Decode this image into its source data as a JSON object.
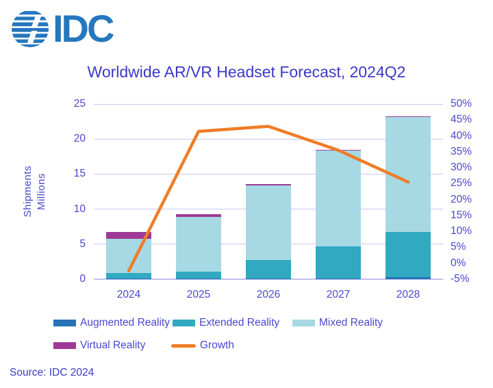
{
  "logo": {
    "text": "IDC",
    "color": "#2577BE"
  },
  "title": {
    "text": "Worldwide AR/VR Headset Forecast, 2024Q2"
  },
  "y_axis_label": {
    "line1": "Shipments",
    "line2": "Millions"
  },
  "source": {
    "text": "Source: IDC 2024"
  },
  "chart_data": {
    "type": "bar",
    "subtype": "stacked-bars-with-growth-line",
    "title": "Worldwide AR/VR Headset Forecast, 2024Q2",
    "categories": [
      "2024",
      "2025",
      "2026",
      "2027",
      "2028"
    ],
    "series": [
      {
        "name": "Augmented Reality",
        "color": "#2673B8",
        "values": [
          0.1,
          0.1,
          0.1,
          0.1,
          0.3
        ]
      },
      {
        "name": "Extended Reality",
        "color": "#31A9C1",
        "values": [
          0.8,
          1.0,
          2.6,
          4.6,
          6.4
        ]
      },
      {
        "name": "Mixed Reality",
        "color": "#A6D9E4",
        "values": [
          4.9,
          7.8,
          10.7,
          13.7,
          16.4
        ]
      },
      {
        "name": "Virtual Reality",
        "color": "#9E3A95",
        "values": [
          0.9,
          0.4,
          0.15,
          0.1,
          0.1
        ]
      }
    ],
    "totals": [
      6.7,
      9.3,
      13.55,
      18.5,
      23.2
    ],
    "line_series": {
      "name": "Growth",
      "color": "#EF7D27",
      "values": [
        -2.4,
        41.4,
        43.0,
        35.5,
        25.5
      ],
      "unit": "%"
    },
    "ylabel_left": "Shipments Millions",
    "y_left": {
      "min": 0,
      "max": 25,
      "ticks": [
        0,
        5,
        10,
        15,
        20,
        25
      ]
    },
    "y_right": {
      "min": -5,
      "max": 50,
      "step": 5,
      "tick_labels": [
        "50%",
        "45%",
        "40%",
        "35%",
        "30%",
        "25%",
        "20%",
        "15%",
        "10%",
        "5%",
        "0%",
        "-5%"
      ]
    },
    "grid": true,
    "gridline_color": "#C9C8F2",
    "legend_position": "bottom",
    "legend": [
      {
        "label": "Augmented Reality",
        "color": "#2673B8",
        "swatch": "rect"
      },
      {
        "label": "Extended Reality",
        "color": "#31A9C1",
        "swatch": "rect"
      },
      {
        "label": "Mixed Reality",
        "color": "#A6D9E4",
        "swatch": "rect"
      },
      {
        "label": "Virtual Reality",
        "color": "#9E3A95",
        "swatch": "rect"
      },
      {
        "label": "Growth",
        "color": "#EF7D27",
        "swatch": "line"
      }
    ]
  }
}
